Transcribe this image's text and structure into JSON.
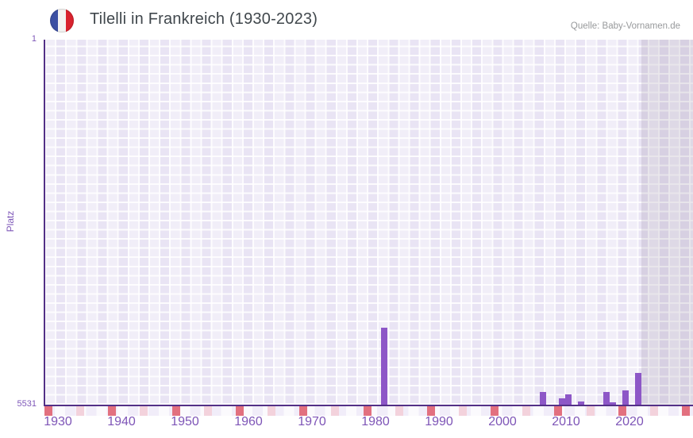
{
  "header": {
    "title": "Tilelli in Frankreich (1930-2023)",
    "source": "Quelle: Baby-Vornamen.de",
    "flag_icon": "france-flag-icon"
  },
  "chart_data": {
    "type": "bar",
    "title": "Tilelli in Frankreich (1930-2023)",
    "xlabel": "",
    "ylabel": "Platz",
    "y_axis": {
      "min": 1,
      "max": 5531,
      "inverted": true,
      "top_tick_label": "1",
      "bottom_tick_label": "5531"
    },
    "x_axis": {
      "min": 1930,
      "max": 2023,
      "tick_interval": 10,
      "decade_ticks": [
        "1930",
        "1940",
        "1950",
        "1960",
        "1970",
        "1980",
        "1990",
        "2000",
        "2010",
        "2020"
      ]
    },
    "series": [
      {
        "name": "Platz",
        "points": [
          {
            "year": 1981,
            "rank": 4360
          },
          {
            "year": 2006,
            "rank": 5340
          },
          {
            "year": 2009,
            "rank": 5435
          },
          {
            "year": 2010,
            "rank": 5370
          },
          {
            "year": 2012,
            "rank": 5478
          },
          {
            "year": 2016,
            "rank": 5340
          },
          {
            "year": 2017,
            "rank": 5490
          },
          {
            "year": 2019,
            "rank": 5320
          },
          {
            "year": 2021,
            "rank": 5045
          }
        ]
      }
    ],
    "recent_no_data_band": {
      "from_year": 2022,
      "to_year": 2023
    },
    "grid": true,
    "legend": false
  },
  "colors": {
    "bar": "#8d57c7",
    "axis_line": "#533087",
    "tick_label": "#7e55b7",
    "plot_background": "#e9e4f4",
    "recent_band": "rgba(103,95,122,0.14)",
    "strip_marker_strong": "#e2707f",
    "strip_marker_light": "#f3d2dc",
    "title_text": "#40474c",
    "source_text": "#97999b",
    "flag_blue": "#3c50a3",
    "flag_red": "#d9232e"
  }
}
